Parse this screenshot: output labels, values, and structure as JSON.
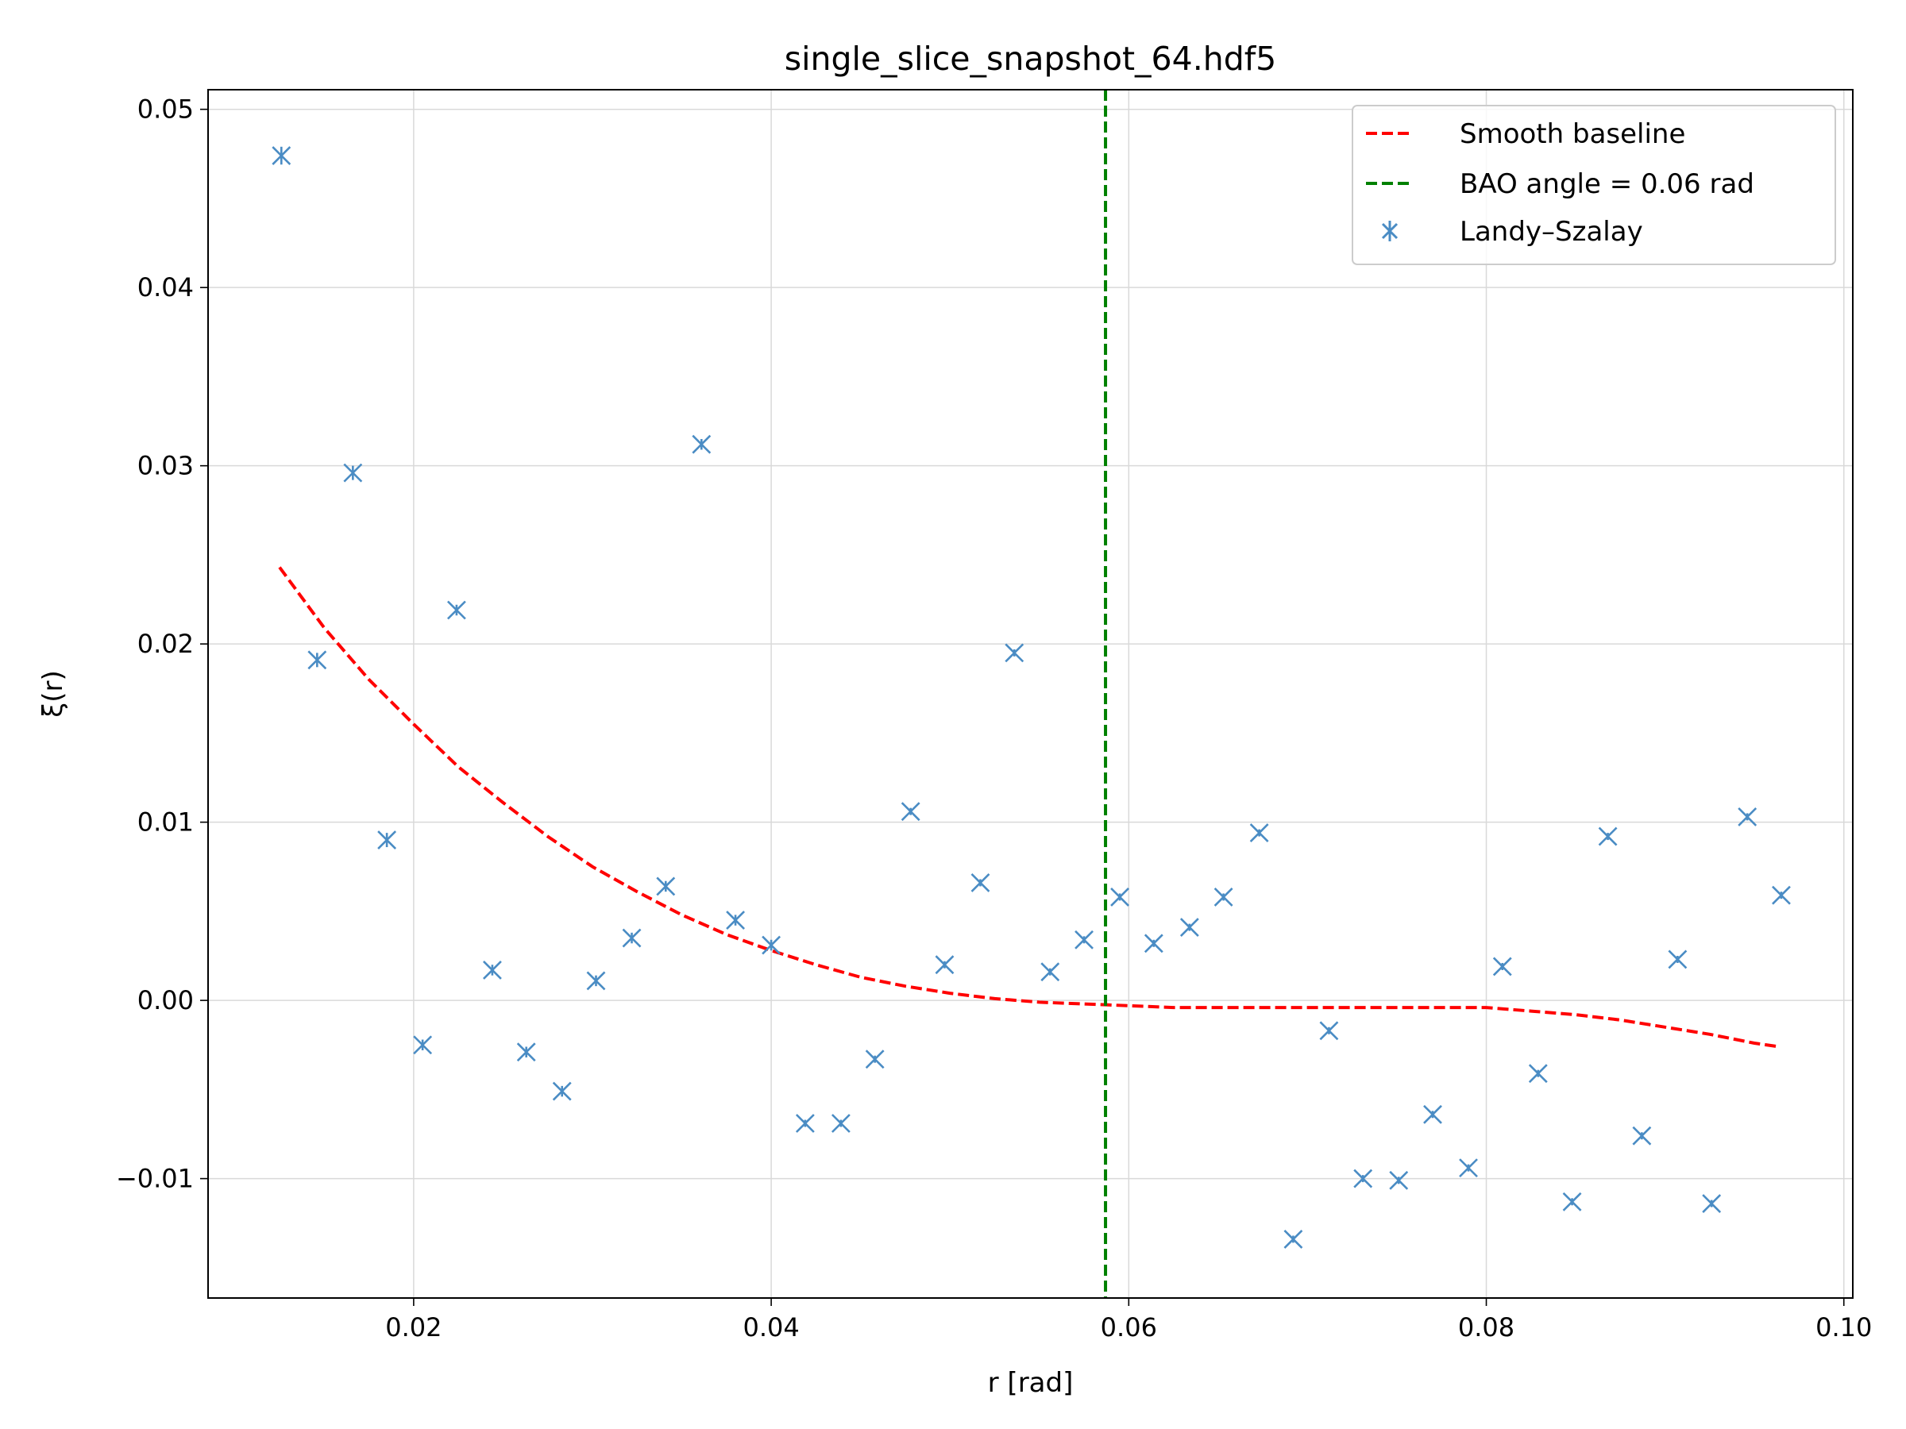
{
  "chart_data": {
    "type": "scatter",
    "title": "single_slice_snapshot_64.hdf5",
    "xlabel": "r [rad]",
    "ylabel": "ξ(r)",
    "xlim": [
      0.0085,
      0.1005
    ],
    "ylim": [
      -0.0167,
      0.0511
    ],
    "x_ticks": [
      0.02,
      0.04,
      0.06,
      0.08,
      0.1
    ],
    "x_tick_labels": [
      "0.02",
      "0.04",
      "0.06",
      "0.08",
      "0.10"
    ],
    "y_ticks": [
      -0.01,
      0.0,
      0.01,
      0.02,
      0.03,
      0.04,
      0.05
    ],
    "y_tick_labels": [
      "−0.01",
      "0.00",
      "0.01",
      "0.02",
      "0.03",
      "0.04",
      "0.05"
    ],
    "grid": true,
    "legend_position": "top-right",
    "vertical_line": {
      "x": 0.0587,
      "label": "BAO angle = 0.06 rad",
      "color": "#008000",
      "style": "dashed"
    },
    "series": [
      {
        "name": "Smooth baseline",
        "kind": "line",
        "style": "dashed",
        "color": "#ff0000",
        "x": [
          0.0125,
          0.015,
          0.0175,
          0.02,
          0.0225,
          0.025,
          0.0275,
          0.03,
          0.0325,
          0.035,
          0.0375,
          0.04,
          0.0425,
          0.045,
          0.0475,
          0.05,
          0.0525,
          0.055,
          0.0575,
          0.06,
          0.0625,
          0.065,
          0.0675,
          0.07,
          0.0725,
          0.075,
          0.0775,
          0.08,
          0.0825,
          0.085,
          0.0875,
          0.09,
          0.0925,
          0.095,
          0.0964
        ],
        "y": [
          0.0243,
          0.0209,
          0.018,
          0.0155,
          0.0131,
          0.0111,
          0.0092,
          0.0075,
          0.0061,
          0.0048,
          0.0037,
          0.0028,
          0.002,
          0.0013,
          0.0008,
          0.0004,
          0.0001,
          -0.0001,
          -0.0002,
          -0.0003,
          -0.0004,
          -0.0004,
          -0.0004,
          -0.0004,
          -0.0004,
          -0.0004,
          -0.0004,
          -0.0004,
          -0.0006,
          -0.0008,
          -0.0011,
          -0.0015,
          -0.0019,
          -0.0024,
          -0.0026
        ]
      },
      {
        "name": "Landy–Szalay",
        "kind": "errorbar-markers",
        "marker": "x",
        "color": "#4a8cc4",
        "x": [
          0.0126,
          0.0146,
          0.0166,
          0.0185,
          0.0205,
          0.0224,
          0.0244,
          0.0263,
          0.0283,
          0.0302,
          0.0322,
          0.0341,
          0.0361,
          0.038,
          0.04,
          0.0419,
          0.0439,
          0.0458,
          0.0478,
          0.0497,
          0.0517,
          0.0536,
          0.0556,
          0.0575,
          0.0595,
          0.0614,
          0.0634,
          0.0653,
          0.0673,
          0.0692,
          0.0712,
          0.0731,
          0.0751,
          0.077,
          0.079,
          0.0809,
          0.0829,
          0.0848,
          0.0868,
          0.0887,
          0.0907,
          0.0926,
          0.0946,
          0.0965
        ],
        "y": [
          0.0474,
          0.0191,
          0.0296,
          0.009,
          -0.0025,
          0.0219,
          0.0017,
          -0.0029,
          -0.0051,
          0.0011,
          0.0035,
          0.0064,
          0.0312,
          0.0045,
          0.0031,
          -0.0069,
          -0.0069,
          -0.0033,
          0.0106,
          0.002,
          0.0066,
          0.0195,
          0.0016,
          0.0034,
          0.0058,
          0.0032,
          0.0041,
          0.0058,
          0.0094,
          -0.0134,
          -0.0017,
          -0.01,
          -0.0101,
          -0.0064,
          -0.0094,
          0.0019,
          -0.0041,
          -0.0113,
          0.0092,
          -0.0076,
          0.0023,
          -0.0114,
          0.0103,
          0.0059
        ],
        "err": [
          0.0005,
          0.0004,
          0.0004,
          0.0004,
          0.0003,
          0.0003,
          0.0003,
          0.0003,
          0.0003,
          0.0003,
          0.0003,
          0.0003,
          0.0003,
          0.0003,
          0.0003,
          0.0002,
          0.0002,
          0.0002,
          0.0002,
          0.0002,
          0.0002,
          0.0002,
          0.0002,
          0.0002,
          0.0002,
          0.0002,
          0.0002,
          0.0002,
          0.0002,
          0.0002,
          0.0002,
          0.0002,
          0.0002,
          0.0002,
          0.0002,
          0.0002,
          0.0002,
          0.0002,
          0.0002,
          0.0002,
          0.0002,
          0.0002,
          0.0002,
          0.0002
        ]
      }
    ]
  }
}
